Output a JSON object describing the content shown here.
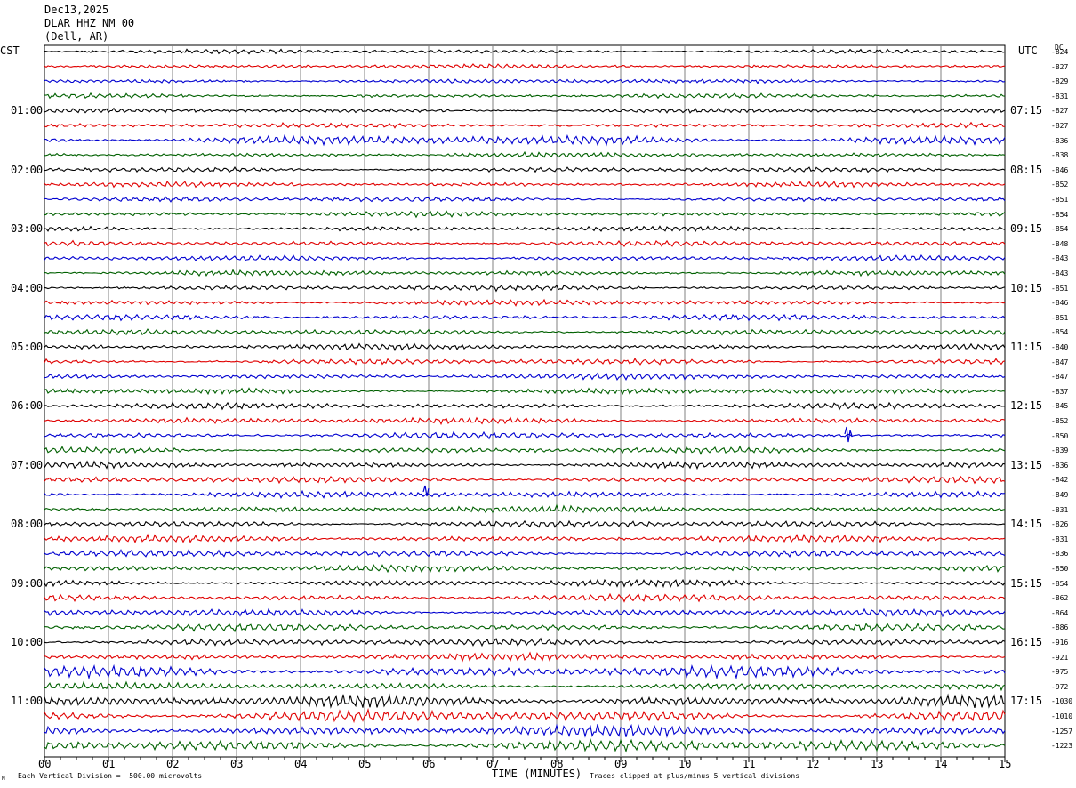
{
  "header": {
    "date": "Dec13,2025",
    "station": "DLAR HHZ NM 00",
    "location": "(Dell, AR)"
  },
  "left_tz": "CST",
  "right_tz": "UTC",
  "dc_header": "DC",
  "colors": {
    "trace_cycle": [
      "#000000",
      "#e00000",
      "#0000d0",
      "#006000"
    ],
    "grid": "#808080"
  },
  "chart_data": {
    "type": "line",
    "title": "DLAR HHZ NM 00",
    "xlabel": "TIME (MINUTES)",
    "xlim": [
      0,
      15
    ],
    "x_ticks": [
      "00",
      "01",
      "02",
      "03",
      "04",
      "05",
      "06",
      "07",
      "08",
      "09",
      "10",
      "11",
      "12",
      "13",
      "14",
      "15"
    ],
    "rows_per_hour": 4,
    "row_count": 48,
    "left_hour_labels": [
      "01:00",
      "02:00",
      "03:00",
      "04:00",
      "05:00",
      "06:00",
      "07:00",
      "08:00",
      "09:00",
      "10:00",
      "11:00"
    ],
    "right_hour_labels": [
      "07:15",
      "08:15",
      "09:15",
      "10:15",
      "11:15",
      "12:15",
      "13:15",
      "14:15",
      "15:15",
      "16:15",
      "17:15"
    ],
    "dc_offsets": [
      "-824",
      "-827",
      "-829",
      "-831",
      "-827",
      "-827",
      "-836",
      "-838",
      "-846",
      "-852",
      "-851",
      "-854",
      "-854",
      "-848",
      "-843",
      "-843",
      "-851",
      "-846",
      "-851",
      "-854",
      "-840",
      "-847",
      "-847",
      "-837",
      "-845",
      "-852",
      "-850",
      "-839",
      "-836",
      "-842",
      "-849",
      "-831",
      "-826",
      "-831",
      "-836",
      "-850",
      "-854",
      "-862",
      "-864",
      "-886",
      "-916",
      "-921",
      "-975",
      "-972",
      "-1030",
      "-1010",
      "-1257",
      "-1223"
    ]
  },
  "footer": {
    "scale_note": "Each Vertical Division =  500.00 microvolts",
    "clip_note": "Traces clipped at plus/minus 5 vertical divisions",
    "corner_mark": "M"
  }
}
